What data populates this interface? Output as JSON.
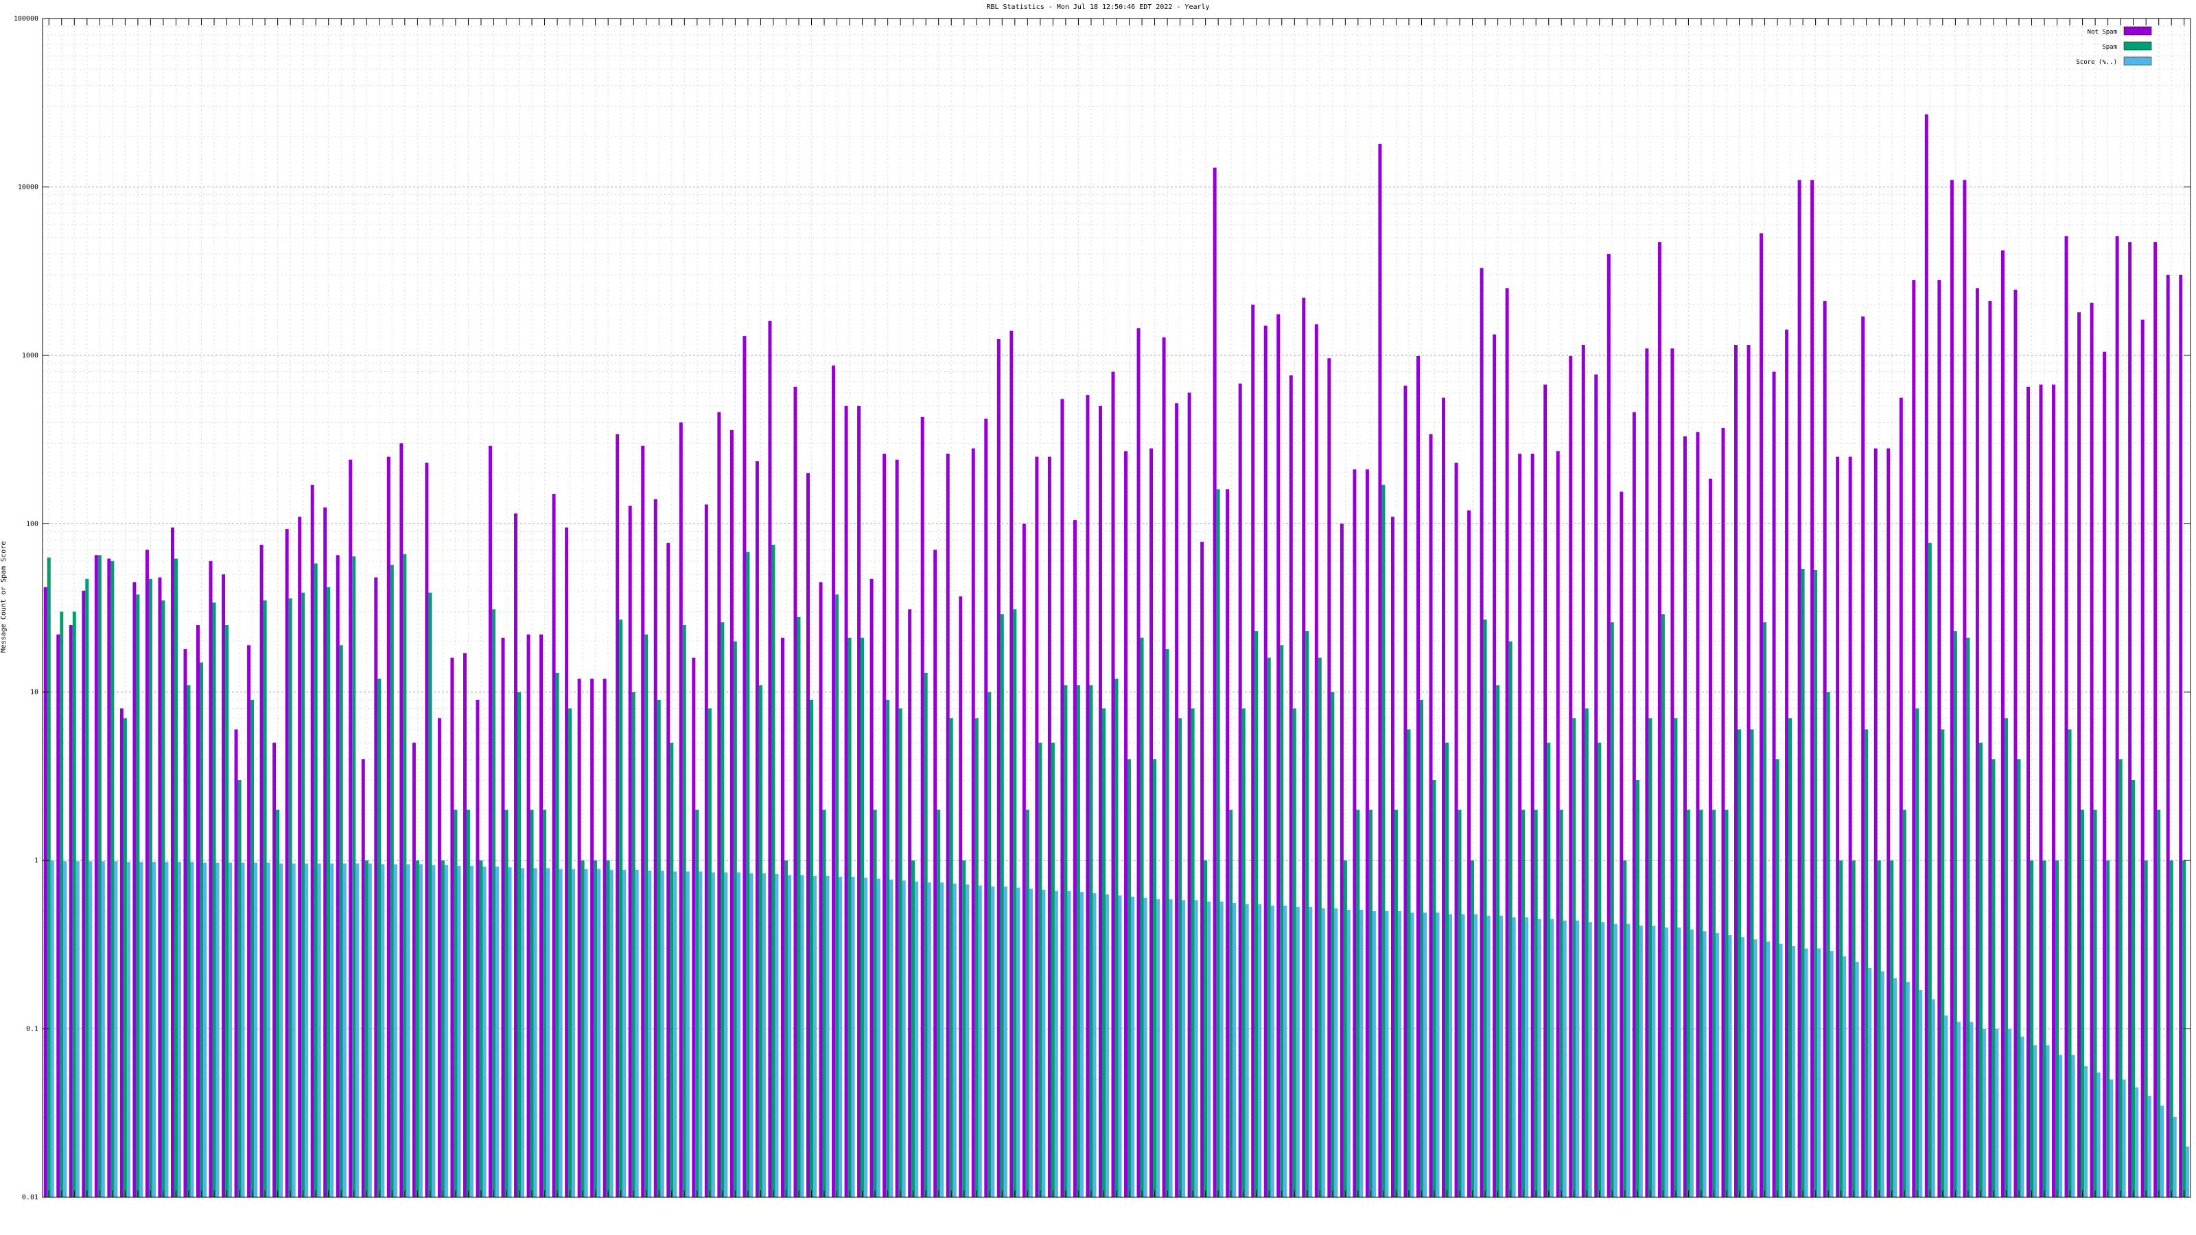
{
  "chart_data": {
    "type": "bar",
    "title": "RBL Statistics - Mon Jul 18 12:50:46 EDT 2022 - Yearly",
    "ylabel": "Message Count or Spam Score",
    "xlabel": "",
    "yscale": "log",
    "ylim": [
      0.01,
      100000
    ],
    "yticks": [
      "0.01",
      "0.1",
      "1",
      "10",
      "100",
      "1000",
      "10000",
      "100000"
    ],
    "grid": true,
    "legend_position": "top-right",
    "series": [
      {
        "name": "Not Spam",
        "color": "#9400d3",
        "values": [
          42,
          22,
          25,
          40,
          65,
          62,
          8,
          45,
          70,
          48,
          95,
          18,
          25,
          60,
          50,
          6,
          19,
          75,
          5,
          93,
          110,
          170,
          125,
          65,
          240,
          4,
          48,
          250,
          300,
          5,
          230,
          7,
          16,
          17,
          9,
          290,
          21,
          115,
          22,
          22,
          150,
          95,
          12,
          12,
          12,
          340,
          128,
          290,
          140,
          77,
          400,
          16,
          130,
          460,
          360,
          1300,
          235,
          1600,
          21,
          650,
          200,
          45,
          870,
          500,
          500,
          47,
          260,
          240,
          31,
          430,
          70,
          260,
          37,
          280,
          420,
          1250,
          1400,
          100,
          250,
          250,
          550,
          105,
          580,
          500,
          800,
          270,
          1450,
          280,
          1280,
          520,
          600,
          78,
          13000,
          160,
          680,
          2000,
          1500,
          1750,
          760,
          2200,
          1530,
          960,
          100,
          210,
          210,
          18000,
          110,
          660,
          990,
          340,
          560,
          230,
          120,
          3300,
          1330,
          2500,
          260,
          260,
          670,
          270,
          990,
          1150,
          770,
          4000,
          155,
          460,
          1100,
          4700,
          1100,
          330,
          350,
          185,
          370,
          1150,
          1150,
          5300,
          800,
          1420,
          11000,
          11000,
          2100,
          250,
          250,
          1700,
          280,
          280,
          560,
          2800,
          27000,
          2800,
          11000,
          11000,
          2500,
          2100,
          4200,
          2450,
          650,
          670,
          670,
          5100,
          1800,
          2050,
          1050,
          5100,
          4700,
          1630,
          4700,
          3000,
          3000
        ]
      },
      {
        "name": "Spam",
        "color": "#009e73",
        "values": [
          63,
          30,
          30,
          47,
          65,
          60,
          7,
          38,
          47,
          35,
          62,
          11,
          15,
          34,
          25,
          3,
          9,
          35,
          2,
          36,
          39,
          58,
          42,
          19,
          64,
          1,
          12,
          57,
          66,
          1,
          39,
          1,
          2,
          2,
          1,
          31,
          2,
          10,
          2,
          2,
          13,
          8,
          1,
          1,
          1,
          27,
          10,
          22,
          9,
          5,
          25,
          2,
          8,
          26,
          20,
          68,
          11,
          75,
          1,
          28,
          9,
          2,
          38,
          21,
          21,
          2,
          9,
          8,
          1,
          13,
          2,
          7,
          1,
          7,
          10,
          29,
          31,
          2,
          5,
          5,
          11,
          11,
          11,
          8,
          12,
          4,
          21,
          4,
          18,
          7,
          8,
          1,
          160,
          2,
          8,
          23,
          16,
          19,
          8,
          23,
          16,
          10,
          1,
          2,
          2,
          170,
          2,
          6,
          9,
          3,
          5,
          2,
          1,
          27,
          11,
          20,
          2,
          2,
          5,
          2,
          7,
          8,
          5,
          26,
          1,
          3,
          7,
          29,
          7,
          2,
          2,
          2,
          2,
          6,
          6,
          26,
          4,
          7,
          54,
          53,
          10,
          1,
          1,
          6,
          1,
          1,
          2,
          8,
          77,
          6,
          23,
          21,
          5,
          4,
          7,
          4,
          1,
          1,
          1,
          6,
          2,
          2,
          1,
          4,
          3,
          1,
          2,
          1,
          1
        ]
      },
      {
        "name": "Score (%..)",
        "color": "#56b4e9",
        "values": [
          1.0,
          0.99,
          0.99,
          0.99,
          0.99,
          0.99,
          0.98,
          0.98,
          0.98,
          0.98,
          0.98,
          0.98,
          0.97,
          0.97,
          0.97,
          0.97,
          0.97,
          0.97,
          0.96,
          0.96,
          0.96,
          0.96,
          0.96,
          0.96,
          0.96,
          0.96,
          0.95,
          0.95,
          0.95,
          0.95,
          0.94,
          0.94,
          0.93,
          0.93,
          0.92,
          0.92,
          0.91,
          0.9,
          0.9,
          0.9,
          0.89,
          0.89,
          0.89,
          0.89,
          0.88,
          0.88,
          0.88,
          0.87,
          0.87,
          0.86,
          0.86,
          0.86,
          0.85,
          0.85,
          0.85,
          0.84,
          0.84,
          0.83,
          0.82,
          0.82,
          0.81,
          0.81,
          0.8,
          0.8,
          0.79,
          0.78,
          0.77,
          0.76,
          0.75,
          0.74,
          0.74,
          0.73,
          0.72,
          0.71,
          0.7,
          0.7,
          0.69,
          0.68,
          0.67,
          0.66,
          0.66,
          0.65,
          0.64,
          0.63,
          0.62,
          0.61,
          0.6,
          0.59,
          0.59,
          0.58,
          0.58,
          0.57,
          0.57,
          0.56,
          0.55,
          0.55,
          0.54,
          0.54,
          0.53,
          0.53,
          0.52,
          0.52,
          0.51,
          0.51,
          0.5,
          0.5,
          0.5,
          0.49,
          0.49,
          0.49,
          0.48,
          0.48,
          0.48,
          0.47,
          0.47,
          0.46,
          0.46,
          0.45,
          0.45,
          0.44,
          0.44,
          0.43,
          0.43,
          0.42,
          0.42,
          0.41,
          0.41,
          0.4,
          0.4,
          0.39,
          0.38,
          0.37,
          0.36,
          0.35,
          0.34,
          0.33,
          0.32,
          0.31,
          0.3,
          0.3,
          0.29,
          0.27,
          0.25,
          0.23,
          0.22,
          0.2,
          0.19,
          0.17,
          0.15,
          0.12,
          0.11,
          0.11,
          0.1,
          0.1,
          0.1,
          0.09,
          0.08,
          0.08,
          0.07,
          0.07,
          0.06,
          0.055,
          0.05,
          0.05,
          0.045,
          0.04,
          0.035,
          0.03,
          0.02,
          0.018,
          0.015
        ]
      }
    ]
  }
}
